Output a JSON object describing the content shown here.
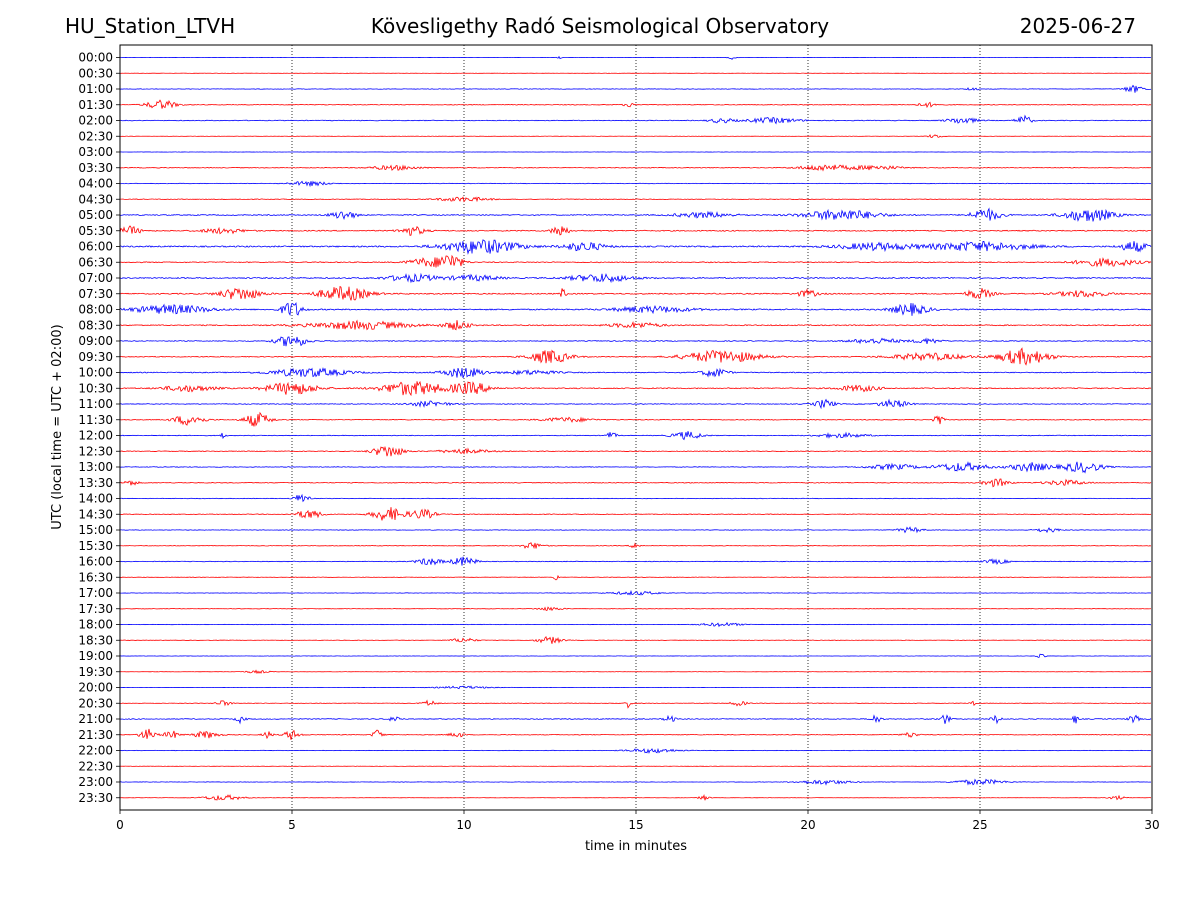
{
  "header": {
    "left": "HU_Station_LTVH",
    "center": "Kövesligethy Radó Seismological Observatory",
    "right": "2025-06-27"
  },
  "colors": {
    "series_a": "#0000ff",
    "series_b": "#ff0000",
    "grid": "#000000",
    "axes": "#000000"
  },
  "chart_data": {
    "type": "line",
    "title": "Kövesligethy Radó Seismological Observatory",
    "xlabel": "time in minutes",
    "ylabel": "UTC (local time = UTC + 02:00)",
    "xlim": [
      0,
      30
    ],
    "x_ticks": [
      "0",
      "5",
      "10",
      "15",
      "20",
      "25",
      "30"
    ],
    "x_gridlines": [
      5,
      10,
      15,
      20,
      25
    ],
    "grid": "vertical dotted at x ticks",
    "row_labels": [
      "00:00",
      "00:30",
      "01:00",
      "01:30",
      "02:00",
      "02:30",
      "03:00",
      "03:30",
      "04:00",
      "04:30",
      "05:00",
      "05:30",
      "06:00",
      "06:30",
      "07:00",
      "07:30",
      "08:00",
      "08:30",
      "09:00",
      "09:30",
      "10:00",
      "10:30",
      "11:00",
      "11:30",
      "12:00",
      "12:30",
      "13:00",
      "13:30",
      "14:00",
      "14:30",
      "15:00",
      "15:30",
      "16:00",
      "16:30",
      "17:00",
      "17:30",
      "18:00",
      "18:30",
      "19:00",
      "19:30",
      "20:00",
      "20:30",
      "21:00",
      "21:30",
      "22:00",
      "22:30",
      "23:00",
      "23:30"
    ],
    "row_colors_cycle": [
      "blue",
      "red"
    ],
    "noise_level": [
      0.15,
      0.12,
      0.25,
      0.3,
      0.35,
      0.15,
      0.12,
      0.3,
      0.25,
      0.3,
      0.45,
      0.5,
      0.65,
      0.45,
      0.55,
      0.55,
      0.6,
      0.5,
      0.4,
      0.4,
      0.45,
      0.5,
      0.35,
      0.35,
      0.3,
      0.35,
      0.3,
      0.35,
      0.25,
      0.3,
      0.25,
      0.25,
      0.3,
      0.2,
      0.2,
      0.2,
      0.2,
      0.2,
      0.15,
      0.15,
      0.15,
      0.25,
      0.4,
      0.3,
      0.2,
      0.15,
      0.2,
      0.15
    ],
    "bursts": [
      [
        [
          17.8,
          0.15,
          0.4
        ],
        [
          12.8,
          0.1,
          0.3
        ]
      ],
      [],
      [
        [
          24.8,
          0.2,
          0.5
        ],
        [
          29.5,
          0.4,
          0.8
        ]
      ],
      [
        [
          1.2,
          0.6,
          1.0
        ],
        [
          14.8,
          0.2,
          0.5
        ],
        [
          23.5,
          0.4,
          0.5
        ]
      ],
      [
        [
          19.0,
          1.0,
          0.6
        ],
        [
          26.3,
          0.3,
          1.1
        ],
        [
          24.5,
          0.6,
          0.7
        ],
        [
          17.5,
          0.5,
          0.5
        ]
      ],
      [
        [
          23.7,
          0.3,
          0.4
        ]
      ],
      [],
      [
        [
          8.0,
          1.0,
          0.5
        ],
        [
          20.5,
          1.0,
          0.7
        ],
        [
          22.0,
          1.0,
          0.5
        ]
      ],
      [
        [
          5.5,
          0.8,
          0.5
        ]
      ],
      [
        [
          10.0,
          1.0,
          0.5
        ]
      ],
      [
        [
          6.5,
          0.5,
          1.0
        ],
        [
          21.0,
          1.5,
          1.2
        ],
        [
          25.2,
          0.6,
          1.4
        ],
        [
          28.2,
          1.0,
          1.5
        ],
        [
          17.0,
          1.2,
          0.6
        ]
      ],
      [
        [
          0.3,
          0.4,
          1.0
        ],
        [
          8.5,
          0.5,
          1.0
        ],
        [
          12.8,
          0.3,
          1.5
        ],
        [
          3.0,
          0.8,
          0.6
        ]
      ],
      [
        [
          10.5,
          1.5,
          1.6
        ],
        [
          13.5,
          0.8,
          1.0
        ],
        [
          25.0,
          2.0,
          1.0
        ],
        [
          29.5,
          0.5,
          1.2
        ],
        [
          22.0,
          1.5,
          0.8
        ]
      ],
      [
        [
          9.6,
          0.5,
          1.8
        ],
        [
          8.9,
          0.7,
          0.9
        ],
        [
          28.7,
          1.2,
          0.9
        ]
      ],
      [
        [
          8.5,
          1.0,
          0.8
        ],
        [
          14.0,
          1.2,
          0.9
        ],
        [
          10.3,
          1.0,
          0.6
        ]
      ],
      [
        [
          3.5,
          0.8,
          1.4
        ],
        [
          6.5,
          1.0,
          1.6
        ],
        [
          12.9,
          0.1,
          1.5
        ],
        [
          25.0,
          0.5,
          1.2
        ],
        [
          20.0,
          0.4,
          0.8
        ],
        [
          28.0,
          1.0,
          0.7
        ]
      ],
      [
        [
          1.5,
          1.5,
          1.0
        ],
        [
          5.0,
          0.4,
          1.8
        ],
        [
          23.0,
          0.7,
          1.3
        ],
        [
          15.5,
          1.5,
          0.7
        ]
      ],
      [
        [
          7.0,
          2.0,
          0.9
        ],
        [
          9.8,
          0.5,
          1.0
        ],
        [
          15.0,
          1.0,
          0.6
        ]
      ],
      [
        [
          5.0,
          0.6,
          1.4
        ],
        [
          22.0,
          1.0,
          0.6
        ],
        [
          23.5,
          0.5,
          0.6
        ]
      ],
      [
        [
          12.5,
          0.8,
          1.5
        ],
        [
          17.5,
          1.5,
          1.4
        ],
        [
          26.3,
          1.0,
          1.8
        ],
        [
          23.5,
          1.5,
          0.8
        ]
      ],
      [
        [
          5.5,
          1.5,
          1.0
        ],
        [
          10.0,
          0.8,
          1.2
        ],
        [
          17.3,
          0.5,
          1.0
        ],
        [
          12.0,
          1.0,
          0.5
        ]
      ],
      [
        [
          5.0,
          1.0,
          1.4
        ],
        [
          8.5,
          1.2,
          1.6
        ],
        [
          10.2,
          0.8,
          1.3
        ],
        [
          21.5,
          0.8,
          0.7
        ],
        [
          2.0,
          1.0,
          0.7
        ]
      ],
      [
        [
          20.5,
          0.4,
          1.0
        ],
        [
          22.5,
          0.6,
          0.9
        ],
        [
          9.0,
          0.8,
          0.6
        ]
      ],
      [
        [
          2.0,
          0.6,
          1.2
        ],
        [
          4.0,
          0.5,
          1.6
        ],
        [
          23.8,
          0.2,
          1.3
        ],
        [
          13.0,
          1.0,
          0.5
        ]
      ],
      [
        [
          3.0,
          0.1,
          0.8
        ],
        [
          14.3,
          0.2,
          0.8
        ],
        [
          16.5,
          0.6,
          0.9
        ],
        [
          21.0,
          1.0,
          0.5
        ]
      ],
      [
        [
          7.8,
          0.6,
          1.4
        ],
        [
          10.0,
          1.0,
          0.5
        ]
      ],
      [
        [
          24.5,
          1.0,
          1.0
        ],
        [
          26.5,
          0.8,
          1.0
        ],
        [
          28.0,
          0.8,
          1.2
        ],
        [
          22.5,
          1.0,
          0.6
        ]
      ],
      [
        [
          25.5,
          0.5,
          0.9
        ],
        [
          27.5,
          0.8,
          0.6
        ],
        [
          0.3,
          0.3,
          0.6
        ]
      ],
      [
        [
          5.3,
          0.3,
          1.2
        ]
      ],
      [
        [
          5.5,
          0.5,
          1.0
        ],
        [
          7.8,
          0.6,
          1.6
        ],
        [
          8.8,
          0.5,
          1.1
        ]
      ],
      [
        [
          23.0,
          0.5,
          0.6
        ],
        [
          27.0,
          0.5,
          0.5
        ]
      ],
      [
        [
          12.0,
          0.4,
          0.8
        ],
        [
          15.0,
          0.2,
          0.6
        ]
      ],
      [
        [
          9.0,
          0.5,
          0.8
        ],
        [
          10.0,
          0.5,
          1.0
        ],
        [
          25.5,
          0.5,
          0.5
        ]
      ],
      [
        [
          12.7,
          0.1,
          0.8
        ]
      ],
      [
        [
          15.0,
          1.0,
          0.4
        ]
      ],
      [
        [
          12.5,
          0.5,
          0.4
        ]
      ],
      [
        [
          17.5,
          0.8,
          0.4
        ]
      ],
      [
        [
          12.5,
          0.5,
          0.8
        ],
        [
          10.0,
          0.5,
          0.5
        ]
      ],
      [
        [
          26.8,
          0.2,
          0.4
        ]
      ],
      [
        [
          4.0,
          0.5,
          0.3
        ]
      ],
      [
        [
          10.0,
          1.0,
          0.3
        ]
      ],
      [
        [
          14.8,
          0.1,
          1.0
        ],
        [
          24.8,
          0.1,
          0.9
        ],
        [
          3.0,
          0.3,
          0.6
        ],
        [
          9.0,
          0.3,
          0.6
        ],
        [
          18.0,
          0.3,
          0.6
        ]
      ],
      [
        [
          22.0,
          0.2,
          1.0
        ],
        [
          24.0,
          0.2,
          1.1
        ],
        [
          25.5,
          0.2,
          0.9
        ],
        [
          27.8,
          0.1,
          1.1
        ],
        [
          29.5,
          0.2,
          0.9
        ],
        [
          3.5,
          0.2,
          0.8
        ],
        [
          8.0,
          0.2,
          0.8
        ],
        [
          16.0,
          0.2,
          0.8
        ]
      ],
      [
        [
          0.8,
          0.3,
          1.3
        ],
        [
          1.5,
          0.3,
          0.9
        ],
        [
          2.5,
          0.5,
          0.8
        ],
        [
          5.0,
          0.3,
          1.1
        ],
        [
          7.5,
          0.2,
          1.2
        ],
        [
          4.3,
          0.2,
          0.8
        ],
        [
          9.8,
          0.3,
          0.6
        ],
        [
          23.0,
          0.3,
          0.6
        ]
      ],
      [
        [
          15.5,
          1.0,
          0.5
        ]
      ],
      [],
      [
        [
          20.5,
          1.0,
          0.5
        ],
        [
          25.0,
          1.0,
          0.6
        ]
      ],
      [
        [
          3.0,
          0.8,
          0.6
        ],
        [
          17.0,
          0.2,
          0.6
        ],
        [
          29.0,
          0.3,
          0.5
        ]
      ]
    ]
  }
}
